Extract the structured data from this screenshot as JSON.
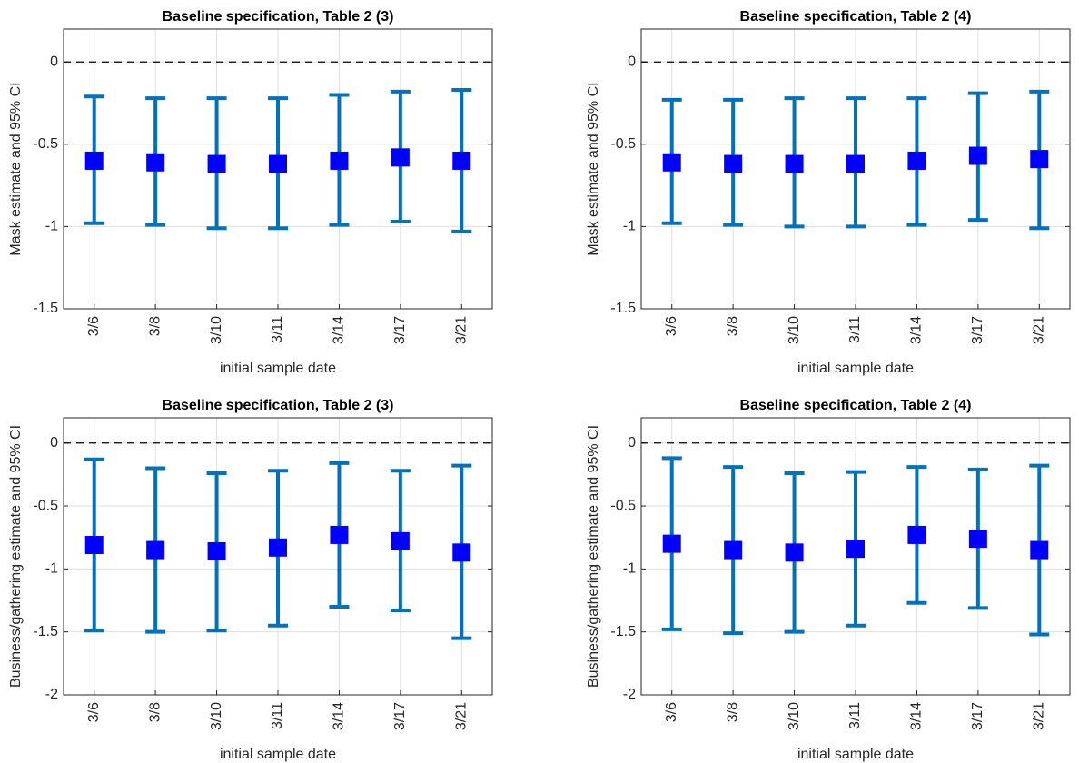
{
  "chart_data": [
    {
      "type": "errorbar",
      "title": "Baseline specification, Table 2 (3)",
      "ylabel": "Mask estimate and 95% CI",
      "xlabel": "initial sample date",
      "categories": [
        "3/6",
        "3/8",
        "3/10",
        "3/11",
        "3/14",
        "3/17",
        "3/21"
      ],
      "values": [
        -0.6,
        -0.61,
        -0.62,
        -0.62,
        -0.6,
        -0.58,
        -0.6
      ],
      "lower": [
        -0.98,
        -0.99,
        -1.01,
        -1.01,
        -0.99,
        -0.97,
        -1.03
      ],
      "upper": [
        -0.21,
        -0.22,
        -0.22,
        -0.22,
        -0.2,
        -0.18,
        -0.17
      ],
      "color": "#0072bd",
      "marker_color": "#0000ff",
      "hline": 0,
      "ylim": [
        -1.5,
        0.2
      ],
      "yticks": [
        -1.5,
        -1,
        -0.5,
        0
      ],
      "grid": true
    },
    {
      "type": "errorbar",
      "title": "Baseline specification, Table 2 (4)",
      "ylabel": "Mask estimate and 95% CI",
      "xlabel": "initial sample date",
      "categories": [
        "3/6",
        "3/8",
        "3/10",
        "3/11",
        "3/14",
        "3/17",
        "3/21"
      ],
      "values": [
        -0.61,
        -0.62,
        -0.62,
        -0.62,
        -0.6,
        -0.57,
        -0.59
      ],
      "lower": [
        -0.98,
        -0.99,
        -1.0,
        -1.0,
        -0.99,
        -0.96,
        -1.01
      ],
      "upper": [
        -0.23,
        -0.23,
        -0.22,
        -0.22,
        -0.22,
        -0.19,
        -0.18
      ],
      "color": "#0072bd",
      "marker_color": "#0000ff",
      "hline": 0,
      "ylim": [
        -1.5,
        0.2
      ],
      "yticks": [
        -1.5,
        -1,
        -0.5,
        0
      ],
      "grid": true
    },
    {
      "type": "errorbar",
      "title": "Baseline specification, Table 2 (3)",
      "ylabel": "Business/gathering estimate and 95% CI",
      "xlabel": "initial sample date",
      "categories": [
        "3/6",
        "3/8",
        "3/10",
        "3/11",
        "3/14",
        "3/17",
        "3/21"
      ],
      "values": [
        -0.81,
        -0.85,
        -0.86,
        -0.83,
        -0.73,
        -0.78,
        -0.87
      ],
      "lower": [
        -1.49,
        -1.5,
        -1.49,
        -1.45,
        -1.3,
        -1.33,
        -1.55
      ],
      "upper": [
        -0.13,
        -0.2,
        -0.24,
        -0.22,
        -0.16,
        -0.22,
        -0.18
      ],
      "color": "#0072bd",
      "marker_color": "#0000ff",
      "hline": 0,
      "ylim": [
        -2,
        0.2
      ],
      "yticks": [
        -2,
        -1.5,
        -1,
        -0.5,
        0
      ],
      "grid": true
    },
    {
      "type": "errorbar",
      "title": "Baseline specification, Table 2 (4)",
      "ylabel": "Business/gathering estimate and 95% CI",
      "xlabel": "initial sample date",
      "categories": [
        "3/6",
        "3/8",
        "3/10",
        "3/11",
        "3/14",
        "3/17",
        "3/21"
      ],
      "values": [
        -0.8,
        -0.85,
        -0.87,
        -0.84,
        -0.73,
        -0.76,
        -0.85
      ],
      "lower": [
        -1.48,
        -1.51,
        -1.5,
        -1.45,
        -1.27,
        -1.31,
        -1.52
      ],
      "upper": [
        -0.12,
        -0.19,
        -0.24,
        -0.23,
        -0.19,
        -0.21,
        -0.18
      ],
      "color": "#0072bd",
      "marker_color": "#0000ff",
      "hline": 0,
      "ylim": [
        -2,
        0.2
      ],
      "yticks": [
        -2,
        -1.5,
        -1,
        -0.5,
        0
      ],
      "grid": true
    }
  ]
}
